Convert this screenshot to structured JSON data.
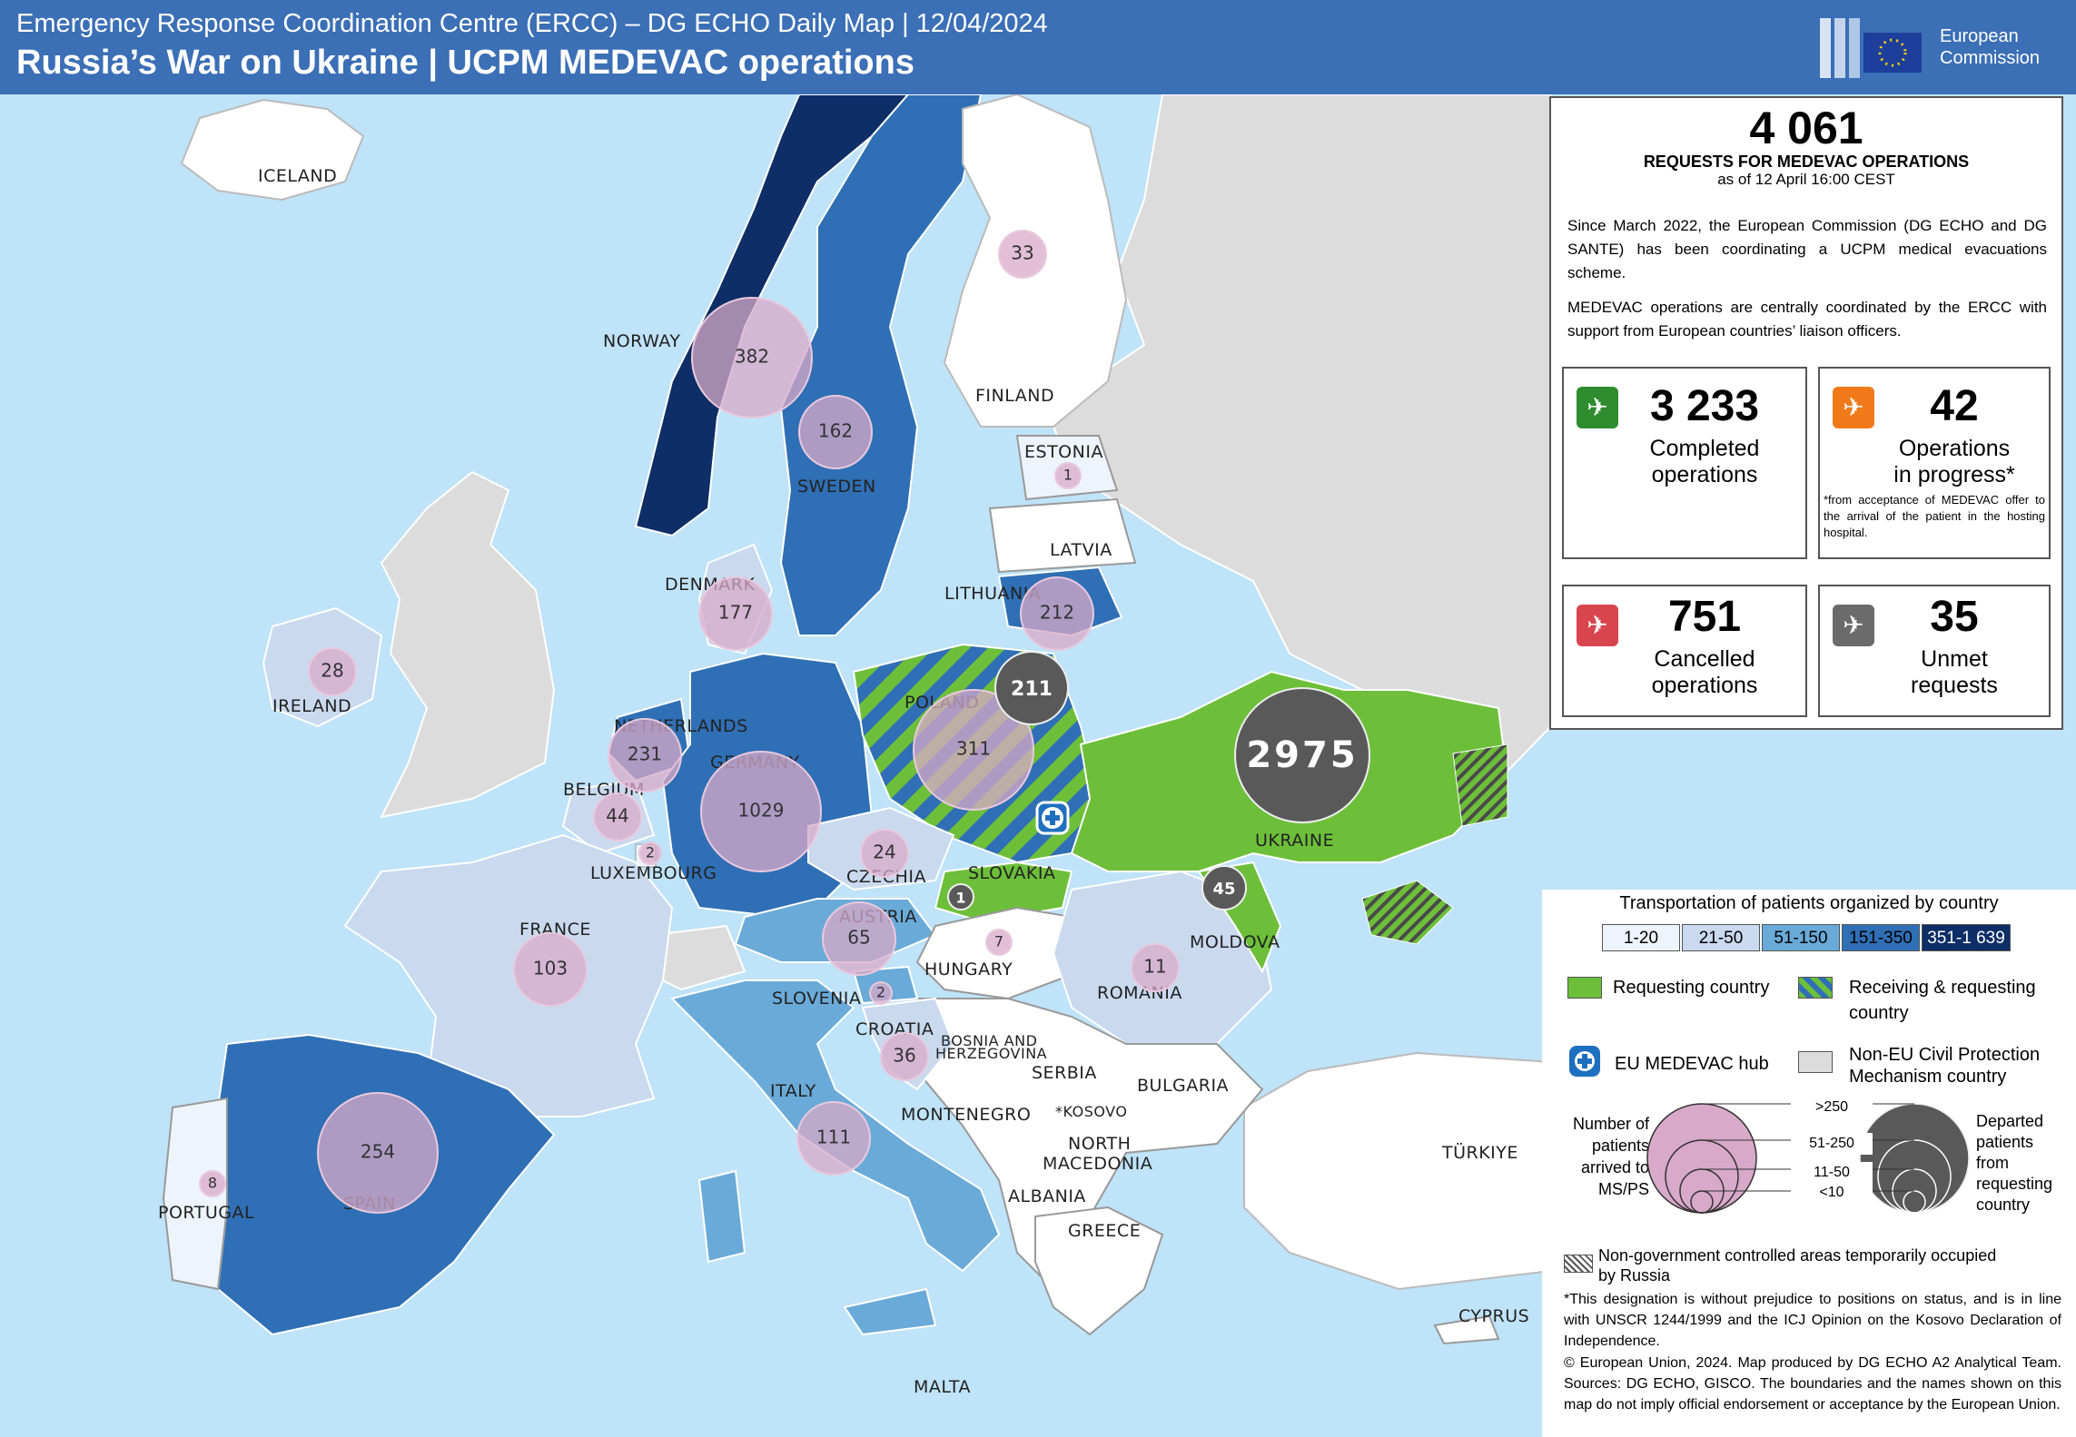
{
  "header": {
    "subtitle": "Emergency Response Coordination Centre (ERCC) – DG ECHO Daily Map |  12/04/2024",
    "title": "Russia’s War on Ukraine  | UCPM MEDEVAC operations",
    "logo_text_1": "European",
    "logo_text_2": "Commission"
  },
  "summary": {
    "total": "4 061",
    "total_label": "REQUESTS FOR MEDEVAC OPERATIONS",
    "as_of": "as of 12 April 16:00 CEST",
    "desc1": "Since March 2022, the European Commission (DG ECHO and DG SANTE) has been coordinating a UCPM medical evacuations scheme.",
    "desc2": "MEDEVAC operations are centrally coordinated by the ERCC with support from European countries’ liaison officers.",
    "completed": {
      "value": "3 233",
      "l1": "Completed",
      "l2": "operations",
      "color": "#2e8b2e"
    },
    "in_progress": {
      "value": "42",
      "l1": "Operations",
      "l2": "in progress*",
      "note": "*from acceptance of MEDEVAC offer to the arrival of the patient in the hosting hospital.",
      "color": "#f07a1a"
    },
    "cancelled": {
      "value": "751",
      "l1": "Cancelled",
      "l2": "operations",
      "color": "#d9454f"
    },
    "unmet": {
      "value": "35",
      "l1": "Unmet",
      "l2": "requests",
      "color": "#6b6b6b"
    }
  },
  "legend": {
    "title": "Transportation of patients organized by country",
    "classes": [
      "1-20",
      "21-50",
      "51-150",
      "151-350",
      "351-1 639"
    ],
    "class_colors": [
      "#eef4fb",
      "#c9d9ee",
      "#6aaad8",
      "#2f6fb5",
      "#0d2e66"
    ],
    "requesting": "Requesting country",
    "receiving_requesting_1": "Receiving & requesting",
    "receiving_requesting_2": "country",
    "hub": "EU MEDEVAC hub",
    "nonEU_1": "Non-EU Civil Protection",
    "nonEU_2": "Mechanism country",
    "arrived_1": "Number of",
    "arrived_2": "patients",
    "arrived_3": "arrived to",
    "arrived_4": "MS/PS",
    "departed_1": "Departed",
    "departed_2": "patients",
    "departed_3": "from",
    "departed_4": "requesting",
    "departed_5": "country",
    "size_1": ">250",
    "size_2": "51-250",
    "size_3": "11-50",
    "size_4": "<10",
    "occupied_1": "Non-government controlled areas temporarily occupied",
    "occupied_2": "by Russia",
    "disclaimer": "*This designation is without prejudice to positions on status, and is in line with UNSCR 1244/1999 and the ICJ Opinion on the Kosovo Declaration of Independence.",
    "copyright": "© European Union, 2024. Map produced by DG ECHO A2 Analytical Team. Sources: DG ECHO, GISCO. The boundaries and the names shown on this map do not imply official endorsement or acceptance by the European Union."
  },
  "map": {
    "countries": {
      "iceland": "ICELAND",
      "norway": "NORWAY",
      "sweden": "SWEDEN",
      "finland": "FINLAND",
      "estonia": "ESTONIA",
      "latvia": "LATVIA",
      "lithuania": "LITHUANIA",
      "denmark": "DENMARK",
      "ireland": "IRELAND",
      "netherlands": "NETHERLANDS",
      "belgium": "BELGIUM",
      "luxembourg": "LUXEMBOURG",
      "germany": "GERMANY",
      "poland": "POLAND",
      "czechia": "CZECHIA",
      "slovakia": "SLOVAKIA",
      "austria": "AUSTRIA",
      "hungary": "HUNGARY",
      "slovenia": "SLOVENIA",
      "croatia": "CROATIA",
      "bosnia_1": "BOSNIA AND",
      "bosnia_2": "HERZEGOVINA",
      "serbia": "SERBIA",
      "kosovo": "*KOSOVO",
      "montenegro": "MONTENEGRO",
      "north_macedonia_1": "NORTH",
      "north_macedonia_2": "MACEDONIA",
      "albania": "ALBANIA",
      "greece": "GREECE",
      "bulgaria": "BULGARIA",
      "romania": "ROMANIA",
      "moldova": "MOLDOVA",
      "ukraine": "UKRAINE",
      "france": "FRANCE",
      "spain": "SPAIN",
      "portugal": "PORTUGAL",
      "italy": "ITALY",
      "malta": "MALTA",
      "turkiye": "TÜRKIYE",
      "cyprus": "CYPRUS"
    },
    "arrivals": {
      "norway": "382",
      "sweden": "162",
      "finland": "33",
      "estonia": "1",
      "denmark": "177",
      "lithuania": "212",
      "ireland": "28",
      "netherlands": "231",
      "germany": "1029",
      "belgium": "44",
      "luxembourg": "2",
      "poland": "311",
      "czechia": "24",
      "austria": "65",
      "hungary": "7",
      "slovenia": "2",
      "croatia": "36",
      "romania": "11",
      "france": "103",
      "italy": "111",
      "spain": "254",
      "portugal": "8"
    },
    "departures": {
      "ukraine": "2975",
      "poland": "211",
      "moldova": "45",
      "slovakia": "1"
    }
  }
}
